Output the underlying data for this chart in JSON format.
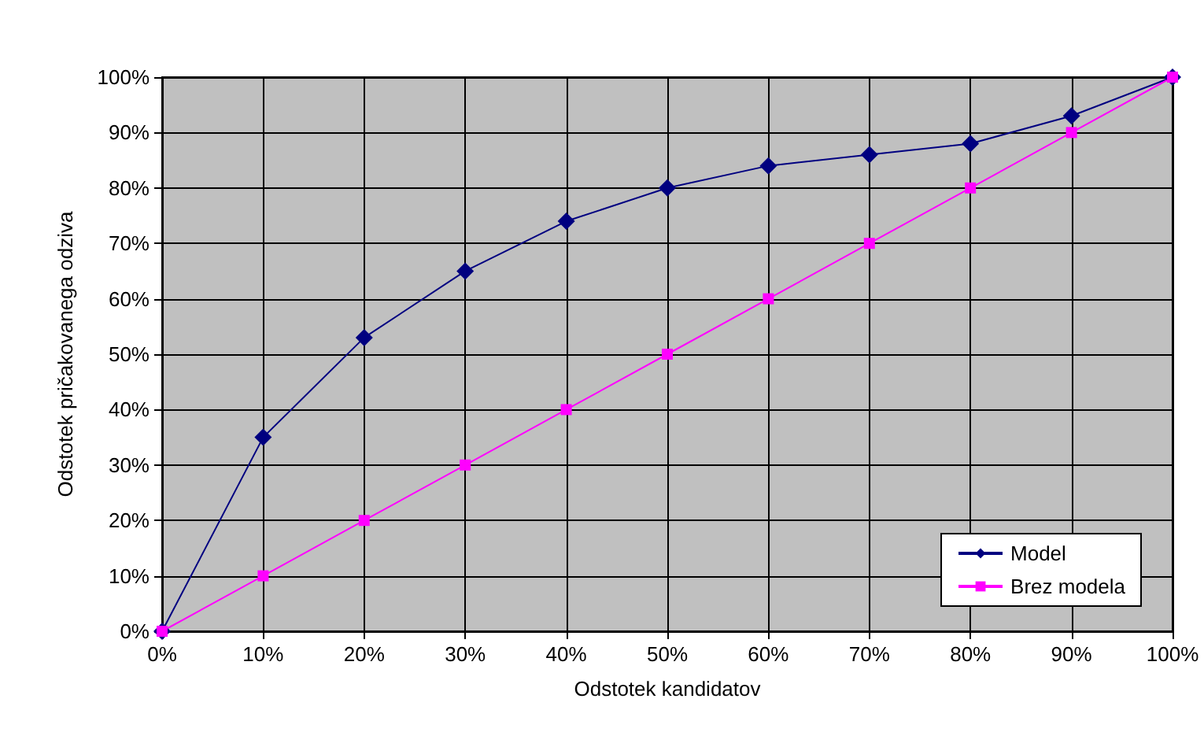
{
  "chart_data": {
    "type": "line",
    "xlabel": "Odstotek kandidatov",
    "ylabel": "Odstotek pričakovanega odziva",
    "x": [
      0,
      10,
      20,
      30,
      40,
      50,
      60,
      70,
      80,
      90,
      100
    ],
    "series": [
      {
        "name": "Model",
        "color": "#000080",
        "marker": "diamond",
        "values": [
          0,
          35,
          53,
          65,
          74,
          80,
          84,
          86,
          88,
          93,
          100
        ]
      },
      {
        "name": "Brez modela",
        "color": "#ff00ff",
        "marker": "square",
        "values": [
          0,
          10,
          20,
          30,
          40,
          50,
          60,
          70,
          80,
          90,
          100
        ]
      }
    ],
    "xlim": [
      0,
      100
    ],
    "ylim": [
      0,
      100
    ],
    "xticks": [
      {
        "value": 0,
        "label": "0%"
      },
      {
        "value": 10,
        "label": "10%"
      },
      {
        "value": 20,
        "label": "20%"
      },
      {
        "value": 30,
        "label": "30%"
      },
      {
        "value": 40,
        "label": "40%"
      },
      {
        "value": 50,
        "label": "50%"
      },
      {
        "value": 60,
        "label": "60%"
      },
      {
        "value": 70,
        "label": "70%"
      },
      {
        "value": 80,
        "label": "80%"
      },
      {
        "value": 90,
        "label": "90%"
      },
      {
        "value": 100,
        "label": "100%"
      }
    ],
    "yticks": [
      {
        "value": 0,
        "label": "0%"
      },
      {
        "value": 10,
        "label": "10%"
      },
      {
        "value": 20,
        "label": "20%"
      },
      {
        "value": 30,
        "label": "30%"
      },
      {
        "value": 40,
        "label": "40%"
      },
      {
        "value": 50,
        "label": "50%"
      },
      {
        "value": 60,
        "label": "60%"
      },
      {
        "value": 70,
        "label": "70%"
      },
      {
        "value": 80,
        "label": "80%"
      },
      {
        "value": 90,
        "label": "90%"
      },
      {
        "value": 100,
        "label": "100%"
      }
    ],
    "grid": true,
    "legend": "bottom right",
    "line_style": "solid"
  }
}
